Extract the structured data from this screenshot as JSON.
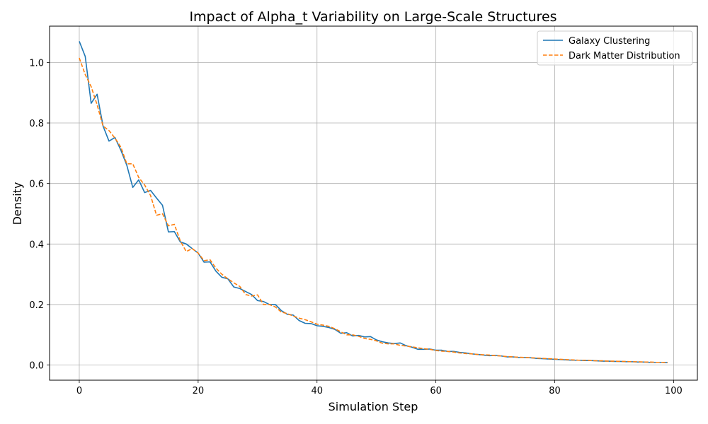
{
  "chart_data": {
    "type": "line",
    "title": "Impact of Alpha_t Variability on Large-Scale Structures",
    "xlabel": "Simulation Step",
    "ylabel": "Density",
    "xlim": [
      -5,
      104
    ],
    "ylim": [
      -0.05,
      1.12
    ],
    "x_ticks": [
      0,
      20,
      40,
      60,
      80,
      100
    ],
    "x_tick_labels": [
      "0",
      "20",
      "40",
      "60",
      "80",
      "100"
    ],
    "y_ticks": [
      0.0,
      0.2,
      0.4,
      0.6,
      0.8,
      1.0
    ],
    "y_tick_labels": [
      "0.0",
      "0.2",
      "0.4",
      "0.6",
      "0.8",
      "1.0"
    ],
    "grid": true,
    "legend_position": "top-right",
    "x": [
      0,
      1,
      2,
      3,
      4,
      5,
      6,
      7,
      8,
      9,
      10,
      11,
      12,
      13,
      14,
      15,
      16,
      17,
      18,
      19,
      20,
      21,
      22,
      23,
      24,
      25,
      26,
      27,
      28,
      29,
      30,
      31,
      32,
      33,
      34,
      35,
      36,
      37,
      38,
      39,
      40,
      41,
      42,
      43,
      44,
      45,
      46,
      47,
      48,
      49,
      50,
      51,
      52,
      53,
      54,
      55,
      56,
      57,
      58,
      59,
      60,
      61,
      62,
      63,
      64,
      65,
      66,
      67,
      68,
      69,
      70,
      71,
      72,
      73,
      74,
      75,
      76,
      77,
      78,
      79,
      80,
      81,
      82,
      83,
      84,
      85,
      86,
      87,
      88,
      89,
      90,
      91,
      92,
      93,
      94,
      95,
      96,
      97,
      98,
      99
    ],
    "series": [
      {
        "name": "Galaxy Clustering",
        "color": "#1f77b4",
        "style": "solid",
        "values": [
          1.07,
          1.02,
          0.865,
          0.895,
          0.79,
          0.74,
          0.752,
          0.71,
          0.66,
          0.587,
          0.612,
          0.57,
          0.577,
          0.552,
          0.528,
          0.44,
          0.441,
          0.407,
          0.4,
          0.385,
          0.37,
          0.34,
          0.341,
          0.31,
          0.29,
          0.285,
          0.258,
          0.253,
          0.243,
          0.233,
          0.213,
          0.21,
          0.2,
          0.2,
          0.18,
          0.168,
          0.165,
          0.147,
          0.138,
          0.137,
          0.13,
          0.128,
          0.124,
          0.118,
          0.105,
          0.107,
          0.096,
          0.098,
          0.093,
          0.094,
          0.083,
          0.077,
          0.073,
          0.071,
          0.073,
          0.064,
          0.059,
          0.052,
          0.052,
          0.053,
          0.049,
          0.049,
          0.045,
          0.045,
          0.042,
          0.04,
          0.037,
          0.035,
          0.033,
          0.031,
          0.032,
          0.03,
          0.027,
          0.027,
          0.025,
          0.025,
          0.024,
          0.022,
          0.021,
          0.02,
          0.019,
          0.018,
          0.017,
          0.016,
          0.016,
          0.015,
          0.015,
          0.014,
          0.013,
          0.013,
          0.012,
          0.012,
          0.011,
          0.011,
          0.01,
          0.01,
          0.009,
          0.009,
          0.009,
          0.008
        ]
      },
      {
        "name": "Dark Matter Distribution",
        "color": "#ff7f0e",
        "style": "dashed",
        "values": [
          1.015,
          0.96,
          0.92,
          0.86,
          0.79,
          0.775,
          0.75,
          0.72,
          0.665,
          0.665,
          0.62,
          0.595,
          0.56,
          0.495,
          0.5,
          0.46,
          0.465,
          0.41,
          0.375,
          0.385,
          0.37,
          0.345,
          0.348,
          0.32,
          0.3,
          0.285,
          0.272,
          0.26,
          0.233,
          0.228,
          0.232,
          0.2,
          0.2,
          0.192,
          0.175,
          0.17,
          0.162,
          0.155,
          0.15,
          0.143,
          0.135,
          0.132,
          0.128,
          0.12,
          0.11,
          0.1,
          0.1,
          0.095,
          0.088,
          0.085,
          0.08,
          0.072,
          0.07,
          0.07,
          0.065,
          0.063,
          0.06,
          0.057,
          0.054,
          0.052,
          0.048,
          0.046,
          0.045,
          0.043,
          0.04,
          0.038,
          0.037,
          0.035,
          0.034,
          0.033,
          0.031,
          0.03,
          0.028,
          0.027,
          0.026,
          0.025,
          0.024,
          0.023,
          0.022,
          0.021,
          0.02,
          0.019,
          0.018,
          0.017,
          0.016,
          0.016,
          0.015,
          0.014,
          0.014,
          0.013,
          0.013,
          0.012,
          0.012,
          0.011,
          0.011,
          0.01,
          0.01,
          0.009,
          0.009,
          0.008
        ]
      }
    ]
  }
}
